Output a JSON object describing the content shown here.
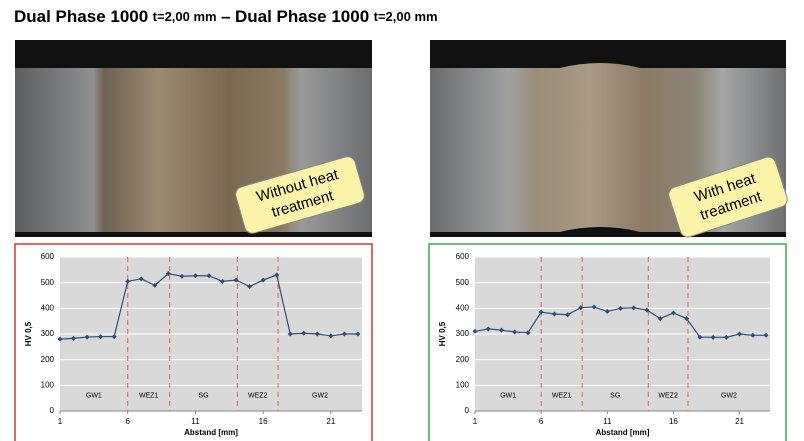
{
  "title_parts": [
    "Dual Phase 1000",
    "t=2,00 mm",
    "–",
    "Dual Phase 1000",
    "t=2,00 mm"
  ],
  "callouts": [
    {
      "lines": [
        "Without heat",
        "treatment"
      ]
    },
    {
      "lines": [
        "With heat",
        "treatment"
      ]
    }
  ],
  "chart_data": [
    {
      "type": "line",
      "frame_color": "#e03030",
      "y_label": "HV 0,5",
      "x_label": "Abstand [mm]",
      "x": [
        1,
        2,
        3,
        4,
        5,
        6,
        7,
        8,
        9,
        10,
        11,
        12,
        13,
        14,
        15,
        16,
        17,
        18,
        19,
        20,
        21,
        22,
        23
      ],
      "series": [
        {
          "name": "HV 0,5",
          "color": "#2f4e7a",
          "values": [
            280,
            283,
            288,
            290,
            290,
            505,
            515,
            490,
            535,
            525,
            527,
            527,
            505,
            510,
            485,
            510,
            530,
            300,
            303,
            300,
            293,
            300,
            300
          ]
        }
      ],
      "xlim": [
        1,
        23.3
      ],
      "xticks": [
        1,
        6,
        11,
        16,
        21
      ],
      "ylim": [
        0,
        600
      ],
      "yticks": [
        0,
        100,
        200,
        300,
        400,
        500,
        600
      ],
      "grid": true,
      "zones": [
        "GW1",
        "WEZ1",
        "SG",
        "WEZ2",
        "GW2"
      ],
      "zone_boundaries": [
        6,
        9.1,
        14.1,
        17.1
      ]
    },
    {
      "type": "line",
      "frame_color": "#3aa84a",
      "y_label": "HV 0,5",
      "x_label": "Abstand [mm]",
      "x": [
        1,
        2,
        3,
        4,
        5,
        6,
        7,
        8,
        9,
        10,
        11,
        12,
        13,
        14,
        15,
        16,
        17,
        18,
        19,
        20,
        21,
        22,
        23
      ],
      "series": [
        {
          "name": "HV 0,5",
          "color": "#2f4e7a",
          "values": [
            310,
            320,
            315,
            308,
            305,
            385,
            378,
            375,
            403,
            405,
            388,
            400,
            402,
            393,
            360,
            382,
            360,
            288,
            287,
            287,
            300,
            295,
            295
          ]
        }
      ],
      "xlim": [
        1,
        23.3
      ],
      "xticks": [
        1,
        6,
        11,
        16,
        21
      ],
      "ylim": [
        0,
        600
      ],
      "yticks": [
        0,
        100,
        200,
        300,
        400,
        500,
        600
      ],
      "grid": true,
      "zones": [
        "GW1",
        "WEZ1",
        "SG",
        "WEZ2",
        "GW2"
      ],
      "zone_boundaries": [
        6,
        9.1,
        14.1,
        17.1
      ]
    }
  ]
}
